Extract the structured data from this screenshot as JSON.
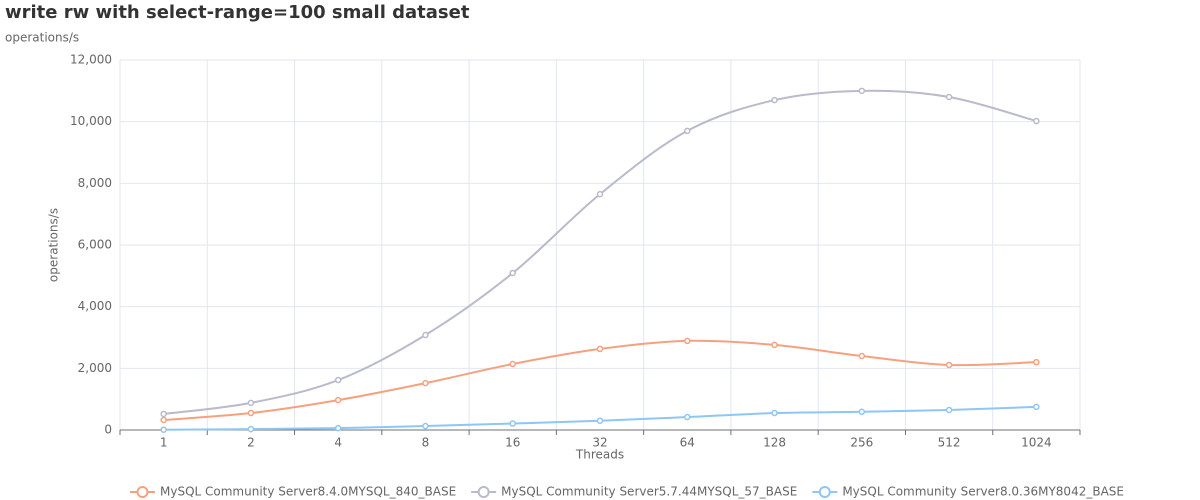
{
  "chart_data": {
    "type": "line",
    "title": "write rw with select-range=100 small dataset",
    "subtitle": "operations/s",
    "y_label": "operations/s",
    "x_label": "Threads",
    "categories": [
      "1",
      "2",
      "4",
      "8",
      "16",
      "32",
      "64",
      "128",
      "256",
      "512",
      "1024"
    ],
    "series": [
      {
        "name": "MySQL Community Server8.4.0MYSQL_840_BASE",
        "color": "#f5a17f",
        "values": [
          324,
          550,
          970,
          1520,
          2140,
          2630,
          2890,
          2760,
          2400,
          2110,
          2200
        ]
      },
      {
        "name": "MySQL Community Server5.7.44MYSQL_57_BASE",
        "color": "#b9bacb",
        "values": [
          520,
          880,
          1620,
          3080,
          5090,
          7650,
          9700,
          10700,
          11000,
          10800,
          10020
        ]
      },
      {
        "name": "MySQL Community Server8.0.36MY8042_BASE",
        "color": "#8ec6f6",
        "values": [
          10,
          30,
          60,
          130,
          210,
          300,
          420,
          550,
          590,
          650,
          750
        ]
      }
    ],
    "ylim": [
      0,
      12000
    ],
    "yticks": [
      0,
      {
        "value": 2000,
        "label": "2,000"
      },
      {
        "value": 4000,
        "label": "4,000"
      },
      {
        "value": 6000,
        "label": "6,000"
      },
      {
        "value": 8000,
        "label": "8,000"
      },
      {
        "value": 10000,
        "label": "10,000"
      },
      {
        "value": 12000,
        "label": "12,000"
      }
    ],
    "grid": true,
    "smooth": true,
    "legend": "bottom"
  }
}
